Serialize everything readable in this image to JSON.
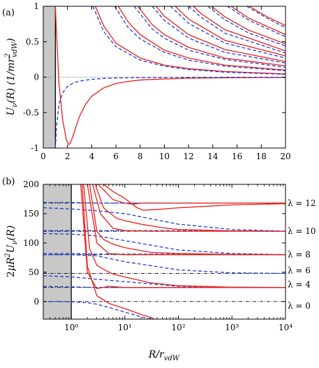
{
  "figure": {
    "panel_a_label": "(a)",
    "panel_b_label": "(b)"
  },
  "colors": {
    "solid_series": "#e8201a",
    "dashed_series": "#1f3fd6",
    "wall_fill": "#c8c8c8",
    "zero_line": "#888888",
    "threshold_line": "#000000"
  },
  "chart_data": [
    {
      "panel": "(a)",
      "type": "line",
      "xlabel": "",
      "ylabel": "U_ν(R) (1/mr²_vdW)",
      "xlim": [
        0,
        20
      ],
      "ylim": [
        -1,
        1
      ],
      "xticks": [
        0,
        2,
        4,
        6,
        8,
        10,
        12,
        14,
        16,
        18,
        20
      ],
      "xtick_labels": [
        "0",
        "2",
        "4",
        "6",
        "8",
        "10",
        "12",
        "14",
        "16",
        "18",
        "20"
      ],
      "yticks": [
        -1,
        -0.5,
        0,
        0.5,
        1
      ],
      "ytick_labels": [
        "-1",
        "-0.5",
        "0",
        "0.5",
        "1"
      ],
      "shaded_region_x": [
        0,
        1
      ],
      "zero_line": true,
      "series": [
        {
          "style": "solid",
          "x": [
            1.0,
            1.1,
            1.3,
            1.6,
            1.9,
            2.1,
            2.2,
            2.4,
            2.7,
            3.0,
            3.5,
            4.0,
            5.0,
            6.0,
            7.0,
            8.0,
            10.0,
            12.0,
            15.0,
            20.0
          ],
          "y": [
            1.0,
            0.6,
            -0.1,
            -0.6,
            -0.88,
            -0.95,
            -0.94,
            -0.86,
            -0.7,
            -0.55,
            -0.38,
            -0.27,
            -0.15,
            -0.09,
            -0.06,
            -0.04,
            -0.025,
            -0.015,
            -0.008,
            -0.004
          ]
        },
        {
          "style": "dashed",
          "x": [
            1.0,
            1.1,
            1.3,
            1.6,
            2.0,
            2.5,
            3.0,
            4.0,
            5.0,
            6.0,
            8.0,
            10.0,
            12.0,
            15.0,
            20.0
          ],
          "y": [
            -1.0,
            -0.68,
            -0.38,
            -0.22,
            -0.13,
            -0.08,
            -0.055,
            -0.03,
            -0.018,
            -0.012,
            -0.006,
            -0.004,
            -0.003,
            -0.002,
            -0.001
          ]
        },
        {
          "style": "solid",
          "x": [
            4.3,
            5,
            6,
            8,
            10,
            12,
            15,
            20
          ],
          "y": [
            1.0,
            0.72,
            0.48,
            0.27,
            0.17,
            0.12,
            0.08,
            0.045
          ]
        },
        {
          "style": "dashed",
          "x": [
            4.1,
            5,
            6,
            8,
            10,
            12,
            15,
            20
          ],
          "y": [
            1.0,
            0.64,
            0.43,
            0.24,
            0.155,
            0.108,
            0.07,
            0.04
          ]
        },
        {
          "style": "solid",
          "x": [
            6.2,
            7,
            8,
            10,
            12,
            15,
            20
          ],
          "y": [
            1.0,
            0.78,
            0.6,
            0.38,
            0.27,
            0.17,
            0.1
          ]
        },
        {
          "style": "dashed",
          "x": [
            5.9,
            7,
            8,
            10,
            12,
            15,
            20
          ],
          "y": [
            1.0,
            0.7,
            0.54,
            0.35,
            0.24,
            0.155,
            0.09
          ]
        },
        {
          "style": "solid",
          "x": [
            7.8,
            9,
            10,
            12,
            15,
            20
          ],
          "y": [
            1.0,
            0.74,
            0.6,
            0.42,
            0.27,
            0.16
          ]
        },
        {
          "style": "dashed",
          "x": [
            7.5,
            9,
            10,
            12,
            15,
            20
          ],
          "y": [
            1.0,
            0.68,
            0.55,
            0.38,
            0.25,
            0.14
          ]
        },
        {
          "style": "solid",
          "x": [
            9.3,
            10,
            12,
            15,
            20
          ],
          "y": [
            1.0,
            0.86,
            0.6,
            0.39,
            0.22
          ]
        },
        {
          "style": "dashed",
          "x": [
            9.0,
            10,
            12,
            15,
            20
          ],
          "y": [
            1.0,
            0.8,
            0.55,
            0.35,
            0.2
          ]
        },
        {
          "style": "solid",
          "x": [
            10.9,
            12,
            15,
            20
          ],
          "y": [
            1.0,
            0.82,
            0.52,
            0.3
          ]
        },
        {
          "style": "dashed",
          "x": [
            10.5,
            12,
            15,
            20
          ],
          "y": [
            1.0,
            0.76,
            0.48,
            0.27
          ]
        },
        {
          "style": "solid",
          "x": [
            12.4,
            13,
            15,
            20
          ],
          "y": [
            1.0,
            0.9,
            0.67,
            0.37
          ]
        },
        {
          "style": "dashed",
          "x": [
            12.0,
            13,
            15,
            20
          ],
          "y": [
            1.0,
            0.85,
            0.62,
            0.34
          ]
        },
        {
          "style": "solid",
          "x": [
            13.9,
            15,
            17,
            20
          ],
          "y": [
            1.0,
            0.85,
            0.66,
            0.47
          ]
        },
        {
          "style": "dashed",
          "x": [
            13.6,
            15,
            17,
            20
          ],
          "y": [
            1.0,
            0.81,
            0.62,
            0.44
          ]
        },
        {
          "style": "solid",
          "x": [
            15.5,
            17,
            20
          ],
          "y": [
            1.0,
            0.83,
            0.6
          ]
        },
        {
          "style": "dashed",
          "x": [
            15.2,
            17,
            20
          ],
          "y": [
            1.0,
            0.8,
            0.57
          ]
        },
        {
          "style": "solid",
          "x": [
            17.0,
            18.5,
            20
          ],
          "y": [
            1.0,
            0.85,
            0.73
          ]
        },
        {
          "style": "dashed",
          "x": [
            16.8,
            18.5,
            20
          ],
          "y": [
            1.0,
            0.83,
            0.7
          ]
        }
      ]
    },
    {
      "panel": "(b)",
      "type": "line",
      "xscale": "log",
      "xlabel": "R/r_vdW",
      "ylabel": "2μR²U_ν(R)",
      "xlim": [
        0.3,
        10000
      ],
      "ylim": [
        -30,
        200
      ],
      "xticks": [
        1,
        10,
        100,
        1000,
        10000
      ],
      "xtick_labels": [
        "10⁰",
        "10¹",
        "10²",
        "10³",
        "10⁴"
      ],
      "yticks": [
        0,
        50,
        100,
        150,
        200
      ],
      "ytick_labels": [
        "0",
        "50",
        "100",
        "150",
        "200"
      ],
      "shaded_region_x": [
        0.3,
        1
      ],
      "thresholds": [
        {
          "label": "λ = 0",
          "value": 0
        },
        {
          "label": "λ = 4",
          "value": 24
        },
        {
          "label": "λ = 6",
          "value": 48
        },
        {
          "label": "λ = 8",
          "value": 80
        },
        {
          "label": "λ = 10",
          "value": 120
        },
        {
          "label": "λ = 12",
          "value": 168
        }
      ],
      "series": [
        {
          "style": "dashed",
          "x": [
            0.3,
            0.5,
            1,
            2,
            3,
            5,
            10,
            20,
            30,
            40
          ],
          "y": [
            0,
            -0.02,
            -0.5,
            -2,
            -4.5,
            -10,
            -18,
            -26,
            -30,
            -32
          ]
        },
        {
          "style": "dashed",
          "x": [
            0.3,
            1,
            3,
            10,
            100,
            1000,
            10000
          ],
          "y": [
            26,
            25,
            24,
            24,
            24,
            24,
            24
          ]
        },
        {
          "style": "dashed",
          "x": [
            0.3,
            1,
            3,
            10,
            100,
            1000,
            10000
          ],
          "y": [
            44,
            42,
            38,
            34,
            26,
            24.5,
            24
          ]
        },
        {
          "style": "dashed",
          "x": [
            0.3,
            1,
            3,
            10,
            100,
            1000,
            10000
          ],
          "y": [
            80,
            80,
            78,
            68,
            54,
            49,
            48
          ]
        },
        {
          "style": "dashed",
          "x": [
            0.3,
            1,
            3,
            10,
            100,
            1000,
            10000
          ],
          "y": [
            82,
            82,
            81,
            81,
            81,
            80.5,
            80
          ]
        },
        {
          "style": "dashed",
          "x": [
            0.3,
            1,
            3,
            10,
            100,
            1000,
            10000
          ],
          "y": [
            116,
            115,
            112,
            104,
            88,
            82,
            80
          ]
        },
        {
          "style": "dashed",
          "x": [
            0.3,
            1,
            3,
            10,
            100,
            1000,
            10000
          ],
          "y": [
            121,
            121,
            121,
            121,
            121,
            120.5,
            120
          ]
        },
        {
          "style": "dashed",
          "x": [
            0.3,
            1,
            3,
            10,
            100,
            1000,
            10000
          ],
          "y": [
            160,
            158,
            155,
            150,
            132,
            123,
            120
          ]
        },
        {
          "style": "dashed",
          "x": [
            0.3,
            1,
            3,
            10,
            100,
            1000,
            10000
          ],
          "y": [
            169,
            169,
            168,
            168,
            168,
            168,
            168
          ]
        },
        {
          "style": "solid",
          "x": [
            1.6,
            2,
            3,
            5,
            10,
            20,
            30,
            40
          ],
          "y": [
            200,
            60,
            10,
            -3,
            -12,
            -22,
            -27,
            -32
          ]
        },
        {
          "style": "solid",
          "x": [
            1.5,
            2,
            3,
            5,
            10,
            100,
            1000,
            10000
          ],
          "y": [
            200,
            50,
            22,
            26,
            24,
            24,
            24,
            24
          ]
        },
        {
          "style": "solid",
          "x": [
            1.7,
            2.2,
            3,
            4,
            6,
            10,
            30,
            100,
            1000,
            10000
          ],
          "y": [
            200,
            90,
            62,
            55,
            47,
            42,
            32,
            27,
            24.5,
            24
          ]
        },
        {
          "style": "solid",
          "x": [
            2.0,
            3,
            5,
            10,
            30,
            100,
            1000,
            10000
          ],
          "y": [
            200,
            100,
            82,
            80,
            80,
            80,
            80,
            80
          ]
        },
        {
          "style": "solid",
          "x": [
            2.2,
            3,
            4,
            6,
            10,
            30,
            100,
            1000,
            10000
          ],
          "y": [
            200,
            120,
            106,
            98,
            92,
            84,
            82,
            80.5,
            80
          ]
        },
        {
          "style": "solid",
          "x": [
            2.5,
            3.5,
            6,
            10,
            30,
            100,
            1000,
            10000
          ],
          "y": [
            200,
            150,
            125,
            121,
            120,
            120,
            120,
            120
          ]
        },
        {
          "style": "solid",
          "x": [
            2.8,
            4,
            7,
            10,
            20,
            50,
            100,
            1000,
            10000
          ],
          "y": [
            200,
            160,
            142,
            138,
            132,
            126,
            123,
            120.5,
            120
          ]
        },
        {
          "style": "solid",
          "x": [
            3.2,
            6,
            10,
            14,
            17,
            20,
            30,
            100,
            1000,
            10000
          ],
          "y": [
            200,
            174,
            168,
            166,
            167,
            168,
            168,
            168,
            168,
            168
          ]
        },
        {
          "style": "solid",
          "x": [
            4.0,
            6,
            10,
            13,
            17,
            22,
            40,
            100,
            1000,
            10000
          ],
          "y": [
            200,
            188,
            176,
            168,
            160,
            156,
            157,
            160,
            165,
            167
          ]
        }
      ]
    }
  ]
}
